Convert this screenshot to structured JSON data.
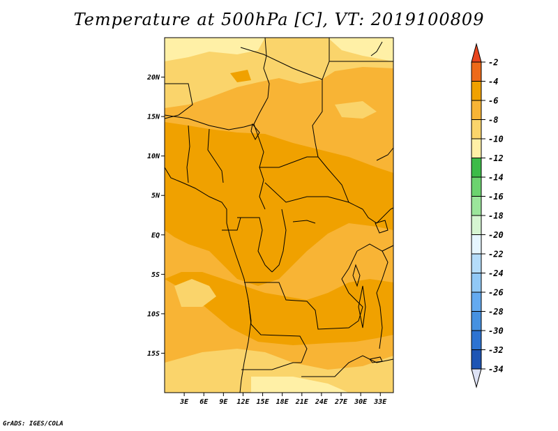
{
  "title": "Temperature at 500hPa [C], VT: 2019100809",
  "credit": "GrADS: IGES/COLA",
  "map": {
    "lon_range": [
      0,
      35
    ],
    "lat_range": [
      -20,
      25
    ],
    "lon_ticks": [
      {
        "value": 3,
        "label": "3E"
      },
      {
        "value": 6,
        "label": "6E"
      },
      {
        "value": 9,
        "label": "9E"
      },
      {
        "value": 12,
        "label": "12E"
      },
      {
        "value": 15,
        "label": "15E"
      },
      {
        "value": 18,
        "label": "18E"
      },
      {
        "value": 21,
        "label": "21E"
      },
      {
        "value": 24,
        "label": "24E"
      },
      {
        "value": 27,
        "label": "27E"
      },
      {
        "value": 30,
        "label": "30E"
      },
      {
        "value": 33,
        "label": "33E"
      }
    ],
    "lat_ticks": [
      {
        "value": 20,
        "label": "20N"
      },
      {
        "value": 15,
        "label": "15N"
      },
      {
        "value": 10,
        "label": "10N"
      },
      {
        "value": 5,
        "label": "5N"
      },
      {
        "value": 0,
        "label": "EQ"
      },
      {
        "value": -5,
        "label": "5S"
      },
      {
        "value": -10,
        "label": "10S"
      },
      {
        "value": -15,
        "label": "15S"
      }
    ]
  },
  "colorbar": {
    "labels": [
      "-2",
      "-4",
      "-6",
      "-8",
      "-10",
      "-12",
      "-14",
      "-16",
      "-18",
      "-20",
      "-22",
      "-24",
      "-26",
      "-28",
      "-30",
      "-32",
      "-34"
    ],
    "colors": [
      "#ee6a19",
      "#f0a100",
      "#f8b435",
      "#fad46b",
      "#fff0a6",
      "#3cbb48",
      "#6cd36f",
      "#9be59b",
      "#d6f5d2",
      "#e6f6ff",
      "#b4dcfa",
      "#91c8f5",
      "#64aaf0",
      "#4691e1",
      "#2d73d2",
      "#1e55b4",
      "#0f2d87",
      "#0a0f64"
    ],
    "top_cap_color": "#e8451e",
    "bottom_cap_color": "#dde2f5"
  },
  "chart_data": {
    "type": "heatmap",
    "title": "Temperature at 500hPa [C], VT: 2019100809",
    "variable": "Temperature at 500hPa",
    "units": "C",
    "valid_time": "2019100809",
    "x_range_degE": [
      0,
      35
    ],
    "y_range_degN": [
      -20,
      25
    ],
    "contour_levels": [
      -2,
      -4,
      -6,
      -8,
      -10,
      -12,
      -14,
      -16,
      -18,
      -20,
      -22,
      -24,
      -26,
      -28,
      -30,
      -32,
      -34
    ],
    "dominant_range": "-4 to -10 C"
  }
}
